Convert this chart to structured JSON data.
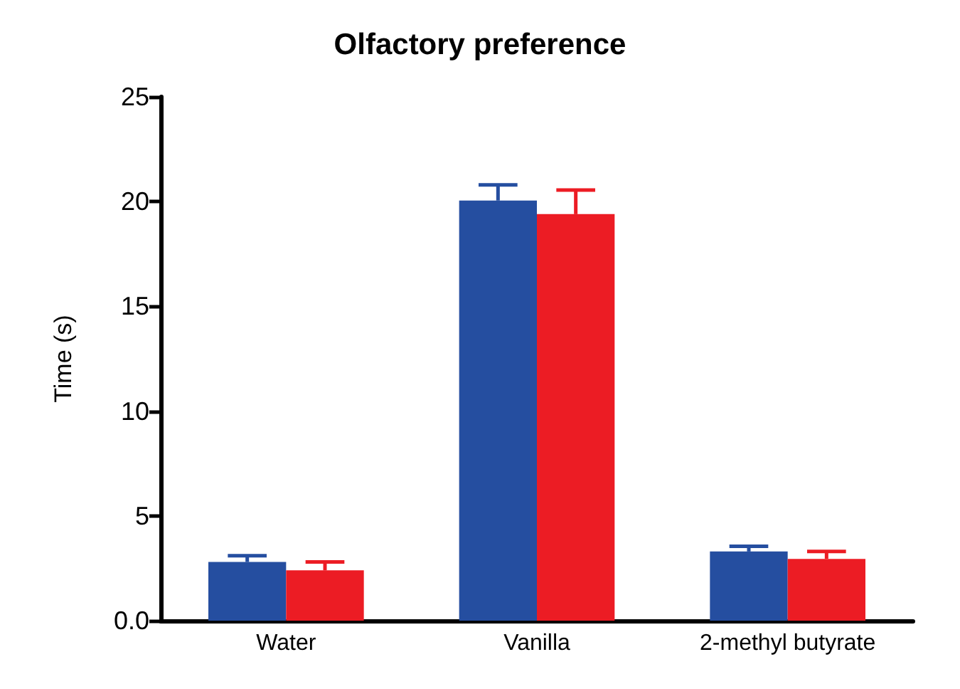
{
  "chart_data": {
    "type": "bar",
    "title": "Olfactory preference",
    "ylabel": "Time (s)",
    "categories": [
      "Water",
      "Vanilla",
      "2-methyl butyrate"
    ],
    "series": [
      {
        "color": "#254ea0",
        "values": [
          2.8,
          20.05,
          3.3
        ],
        "errors": [
          [
            2.8,
            3.1
          ],
          [
            20.05,
            20.8
          ],
          [
            3.3,
            3.55
          ]
        ]
      },
      {
        "color": "#ec1c24",
        "values": [
          2.4,
          19.4,
          2.95
        ],
        "errors": [
          [
            2.4,
            2.8
          ],
          [
            19.4,
            20.55
          ],
          [
            2.95,
            3.3
          ]
        ]
      }
    ],
    "ylim": [
      0,
      25
    ],
    "yticks": [
      {
        "value": 0,
        "label": "0.0"
      },
      5,
      10,
      15,
      20,
      25
    ],
    "grid": false
  }
}
